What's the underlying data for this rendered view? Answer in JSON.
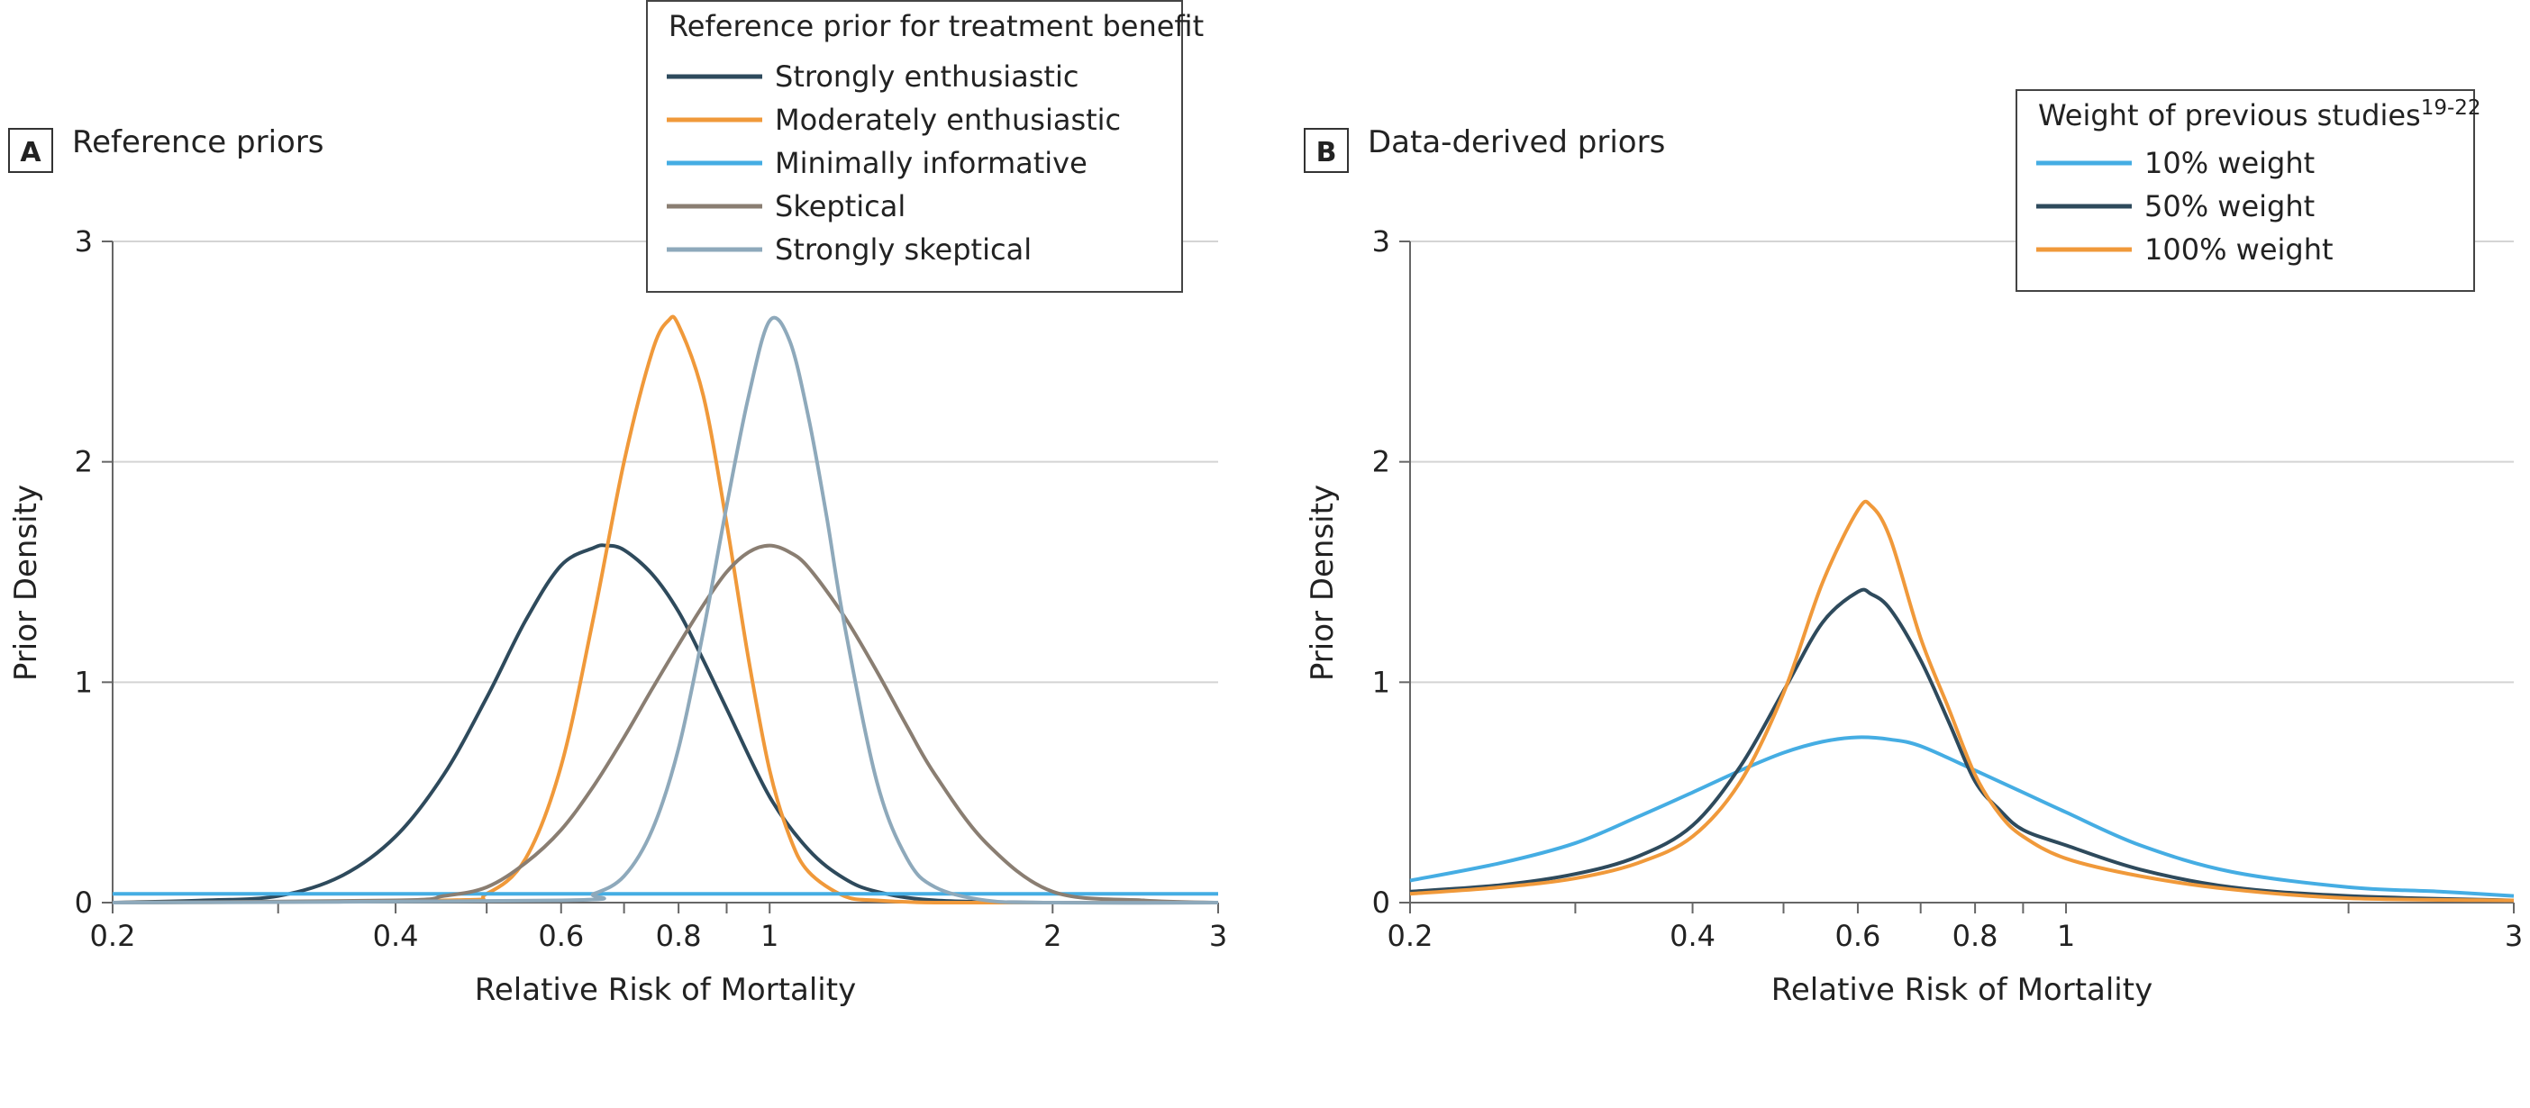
{
  "chart_data": [
    {
      "type": "line",
      "panel_letter": "A",
      "panel_title": "Reference priors",
      "xlabel": "Relative Risk of Mortality",
      "ylabel": "Prior Density",
      "x_scale": "log",
      "xlim": [
        0.2,
        3
      ],
      "ylim": [
        0,
        3
      ],
      "x_ticks": [
        0.2,
        0.4,
        0.6,
        0.8,
        1,
        2,
        3
      ],
      "x_tick_labels": [
        "0.2",
        "0.4",
        "0.6",
        "0.8",
        "1",
        "2",
        "3"
      ],
      "x_minor_ticks": [
        0.3,
        0.5,
        0.7,
        0.9
      ],
      "y_ticks": [
        0,
        1,
        2,
        3
      ],
      "y_tick_labels": [
        "0",
        "1",
        "2",
        "3"
      ],
      "grid": "horizontal",
      "legend": {
        "title": "Reference prior for treatment benefit",
        "title_sup": "",
        "placement": "top-center"
      },
      "series": [
        {
          "name": "Strongly enthusiastic",
          "color": "#2e4a5c",
          "x": [
            0.2,
            0.25,
            0.3,
            0.35,
            0.4,
            0.45,
            0.5,
            0.55,
            0.6,
            0.65,
            0.67,
            0.7,
            0.75,
            0.8,
            0.85,
            0.9,
            1.0,
            1.1,
            1.2,
            1.3,
            1.5,
            2.0,
            3.0
          ],
          "y": [
            0.0,
            0.01,
            0.03,
            0.12,
            0.3,
            0.58,
            0.93,
            1.28,
            1.53,
            1.61,
            1.62,
            1.6,
            1.49,
            1.32,
            1.1,
            0.88,
            0.48,
            0.24,
            0.11,
            0.05,
            0.01,
            0.0,
            0.0
          ]
        },
        {
          "name": "Moderately enthusiastic",
          "color": "#f0993a",
          "x": [
            0.2,
            0.45,
            0.5,
            0.55,
            0.6,
            0.65,
            0.7,
            0.75,
            0.78,
            0.8,
            0.85,
            0.9,
            0.95,
            1.0,
            1.05,
            1.1,
            1.2,
            1.3,
            1.5,
            2.0,
            3.0
          ],
          "y": [
            0.0,
            0.01,
            0.04,
            0.2,
            0.62,
            1.3,
            2.0,
            2.5,
            2.64,
            2.62,
            2.3,
            1.72,
            1.1,
            0.6,
            0.3,
            0.14,
            0.03,
            0.01,
            0.0,
            0.0,
            0.0
          ]
        },
        {
          "name": "Minimally informative",
          "color": "#45ade3",
          "x": [
            0.2,
            3.0
          ],
          "y": [
            0.04,
            0.04
          ]
        },
        {
          "name": "Skeptical",
          "color": "#8a7e72",
          "x": [
            0.2,
            0.4,
            0.45,
            0.5,
            0.55,
            0.6,
            0.65,
            0.7,
            0.75,
            0.8,
            0.85,
            0.9,
            0.95,
            1.0,
            1.05,
            1.1,
            1.2,
            1.3,
            1.4,
            1.5,
            1.7,
            2.0,
            2.5,
            3.0
          ],
          "y": [
            0.0,
            0.01,
            0.03,
            0.07,
            0.18,
            0.33,
            0.53,
            0.75,
            0.97,
            1.17,
            1.35,
            1.5,
            1.59,
            1.62,
            1.59,
            1.52,
            1.3,
            1.05,
            0.8,
            0.58,
            0.27,
            0.05,
            0.01,
            0.0
          ]
        },
        {
          "name": "Strongly skeptical",
          "color": "#8ea9bb",
          "x": [
            0.2,
            0.6,
            0.65,
            0.7,
            0.75,
            0.8,
            0.85,
            0.9,
            0.95,
            1.0,
            1.05,
            1.1,
            1.15,
            1.2,
            1.3,
            1.4,
            1.5,
            1.7,
            2.0,
            3.0
          ],
          "y": [
            0.0,
            0.01,
            0.04,
            0.12,
            0.33,
            0.7,
            1.23,
            1.8,
            2.3,
            2.64,
            2.55,
            2.2,
            1.75,
            1.27,
            0.55,
            0.2,
            0.07,
            0.01,
            0.0,
            0.0
          ]
        }
      ]
    },
    {
      "type": "line",
      "panel_letter": "B",
      "panel_title": "Data-derived priors",
      "xlabel": "Relative Risk of Mortality",
      "ylabel": "Prior Density",
      "x_scale": "log",
      "xlim": [
        0.2,
        3
      ],
      "ylim": [
        0,
        3
      ],
      "x_ticks": [
        0.2,
        0.4,
        0.6,
        0.8,
        1,
        3
      ],
      "x_tick_labels": [
        "0.2",
        "0.4",
        "0.6",
        "0.8",
        "1",
        "3"
      ],
      "x_minor_ticks": [
        0.3,
        0.5,
        0.7,
        0.9,
        2
      ],
      "y_ticks": [
        0,
        1,
        2,
        3
      ],
      "y_tick_labels": [
        "0",
        "1",
        "2",
        "3"
      ],
      "grid": "horizontal",
      "legend": {
        "title": "Weight of previous studies",
        "title_sup": "19-22",
        "placement": "top-right"
      },
      "series": [
        {
          "name": "10% weight",
          "color": "#45ade3",
          "x": [
            0.2,
            0.25,
            0.3,
            0.35,
            0.4,
            0.45,
            0.5,
            0.55,
            0.6,
            0.65,
            0.7,
            0.8,
            0.9,
            1.0,
            1.2,
            1.5,
            2.0,
            2.5,
            3.0
          ],
          "y": [
            0.1,
            0.18,
            0.27,
            0.39,
            0.5,
            0.6,
            0.68,
            0.73,
            0.75,
            0.74,
            0.71,
            0.6,
            0.5,
            0.41,
            0.26,
            0.14,
            0.07,
            0.05,
            0.03
          ]
        },
        {
          "name": "50% weight",
          "color": "#2e4a5c",
          "x": [
            0.2,
            0.25,
            0.3,
            0.35,
            0.4,
            0.45,
            0.5,
            0.55,
            0.6,
            0.62,
            0.65,
            0.7,
            0.75,
            0.8,
            0.85,
            0.9,
            1.0,
            1.2,
            1.5,
            2.0,
            3.0
          ],
          "y": [
            0.05,
            0.08,
            0.13,
            0.21,
            0.35,
            0.62,
            0.96,
            1.27,
            1.41,
            1.4,
            1.33,
            1.1,
            0.82,
            0.55,
            0.42,
            0.33,
            0.26,
            0.15,
            0.07,
            0.03,
            0.01
          ]
        },
        {
          "name": "100% weight",
          "color": "#f0993a",
          "x": [
            0.2,
            0.25,
            0.3,
            0.35,
            0.4,
            0.45,
            0.5,
            0.55,
            0.6,
            0.62,
            0.65,
            0.7,
            0.75,
            0.8,
            0.85,
            0.9,
            1.0,
            1.2,
            1.5,
            2.0,
            3.0
          ],
          "y": [
            0.04,
            0.07,
            0.11,
            0.18,
            0.3,
            0.55,
            0.95,
            1.45,
            1.78,
            1.8,
            1.65,
            1.2,
            0.88,
            0.58,
            0.4,
            0.3,
            0.2,
            0.12,
            0.06,
            0.02,
            0.01
          ]
        }
      ]
    }
  ]
}
